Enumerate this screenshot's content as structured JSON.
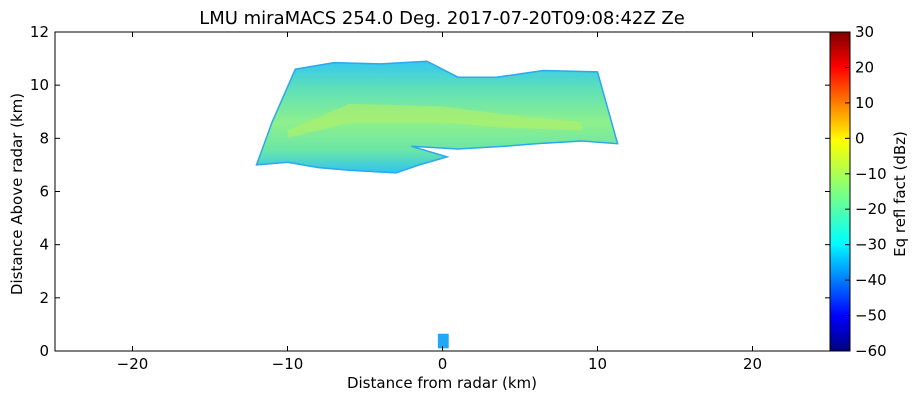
{
  "chart_data": {
    "type": "heatmap",
    "title": "LMU miraMACS 254.0 Deg. 2017-07-20T09:08:42Z  Ze",
    "xlabel": "Distance from radar (km)",
    "ylabel": "Distance Above radar  (km)",
    "xlim": [
      -25,
      25
    ],
    "ylim": [
      0,
      12
    ],
    "xticks": [
      -20,
      -10,
      0,
      10,
      20
    ],
    "xtick_labels": [
      "−20",
      "−10",
      "0",
      "10",
      "20"
    ],
    "yticks": [
      0,
      2,
      4,
      6,
      8,
      10,
      12
    ],
    "ytick_labels": [
      "0",
      "2",
      "4",
      "6",
      "8",
      "10",
      "12"
    ],
    "grid": false,
    "colorbar": {
      "label": "Eq refl fact (dBz)",
      "range": [
        -60,
        30
      ],
      "ticks": [
        30,
        20,
        10,
        0,
        -10,
        -20,
        -30,
        -40,
        -50,
        -60
      ],
      "tick_labels": [
        "30",
        "20",
        "10",
        "0",
        "−10",
        "−20",
        "−30",
        "−40",
        "−50",
        "−60"
      ],
      "colormap": "jet"
    },
    "echo_region": {
      "description_units": "km",
      "outline": [
        [
          -12,
          7.0
        ],
        [
          -11,
          8.6
        ],
        [
          -9.5,
          10.6
        ],
        [
          -7,
          10.85
        ],
        [
          -4,
          10.8
        ],
        [
          -1,
          10.9
        ],
        [
          1,
          10.3
        ],
        [
          3.5,
          10.3
        ],
        [
          6.5,
          10.55
        ],
        [
          10,
          10.5
        ],
        [
          11.3,
          7.8
        ],
        [
          9,
          7.9
        ],
        [
          6,
          7.8
        ],
        [
          4,
          7.7
        ],
        [
          1,
          7.6
        ],
        [
          -2,
          7.7
        ],
        [
          0.3,
          7.3
        ],
        [
          -1.5,
          7.0
        ],
        [
          -3,
          6.7
        ],
        [
          -6,
          6.8
        ],
        [
          -8,
          6.9
        ],
        [
          -10,
          7.1
        ],
        [
          -12,
          7.0
        ]
      ],
      "typical_dbz": -20,
      "core_dbz": -10,
      "edge_dbz": -30
    },
    "near_radar_echo": {
      "x_km": [
        -0.3,
        0.4
      ],
      "y_km": [
        0.1,
        0.65
      ],
      "dbz": -30
    }
  }
}
